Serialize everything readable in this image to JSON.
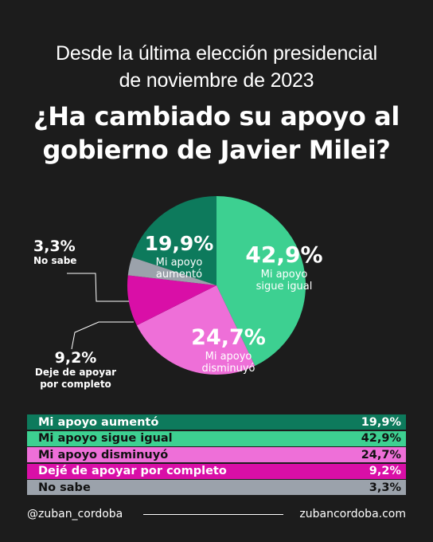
{
  "header": {
    "subtitle_line1": "Desde la última elección presidencial",
    "subtitle_line2": "de noviembre de 2023",
    "title_line1": "¿Ha cambiado su apoyo al",
    "title_line2": "gobierno de Javier Milei?"
  },
  "chart_data": {
    "type": "pie",
    "title": "¿Ha cambiado su apoyo al gobierno de Javier Milei?",
    "slices": [
      {
        "label": "Mi apoyo aumentó",
        "value": 19.9,
        "display": "19,9%",
        "chart_label": "Mi apoyo aumentó",
        "color": "#0d7a5c"
      },
      {
        "label": "Mi apoyo sigue igual",
        "value": 42.9,
        "display": "42,9%",
        "chart_label": "Mi apoyo sigue igual",
        "color": "#3dd091"
      },
      {
        "label": "Mi apoyo disminuyó",
        "value": 24.7,
        "display": "24,7%",
        "chart_label": "Mi apoyo disminuyó",
        "color": "#ee6fd8"
      },
      {
        "label": "Dejé de apoyar por completo",
        "value": 9.2,
        "display": "9,2%",
        "chart_label": "Deje de apoyar por completo",
        "color": "#d90fa7"
      },
      {
        "label": "No sabe",
        "value": 3.3,
        "display": "3,3%",
        "chart_label": "No sabe",
        "color": "#9ba2ab"
      }
    ]
  },
  "outside_labels": {
    "no_sabe": {
      "value": "3,3%",
      "text": "No sabe"
    },
    "deje": {
      "value": "9,2%",
      "text1": "Deje de apoyar",
      "text2": "por completo"
    }
  },
  "table": [
    {
      "label": "Mi apoyo aumentó",
      "value": "19,9%",
      "bg": "#0d7a5c",
      "fg": "#ffffff"
    },
    {
      "label": "Mi apoyo sigue igual",
      "value": "42,9%",
      "bg": "#3dd091",
      "fg": "#111111"
    },
    {
      "label": "Mi apoyo disminuyó",
      "value": "24,7%",
      "bg": "#ee6fd8",
      "fg": "#111111"
    },
    {
      "label": "Dejé de apoyar por completo",
      "value": "9,2%",
      "bg": "#d90fa7",
      "fg": "#ffffff"
    },
    {
      "label": "No sabe",
      "value": "3,3%",
      "bg": "#9ba2ab",
      "fg": "#111111"
    }
  ],
  "footer": {
    "handle": "@zuban_cordoba",
    "website": "zubancordoba.com"
  }
}
